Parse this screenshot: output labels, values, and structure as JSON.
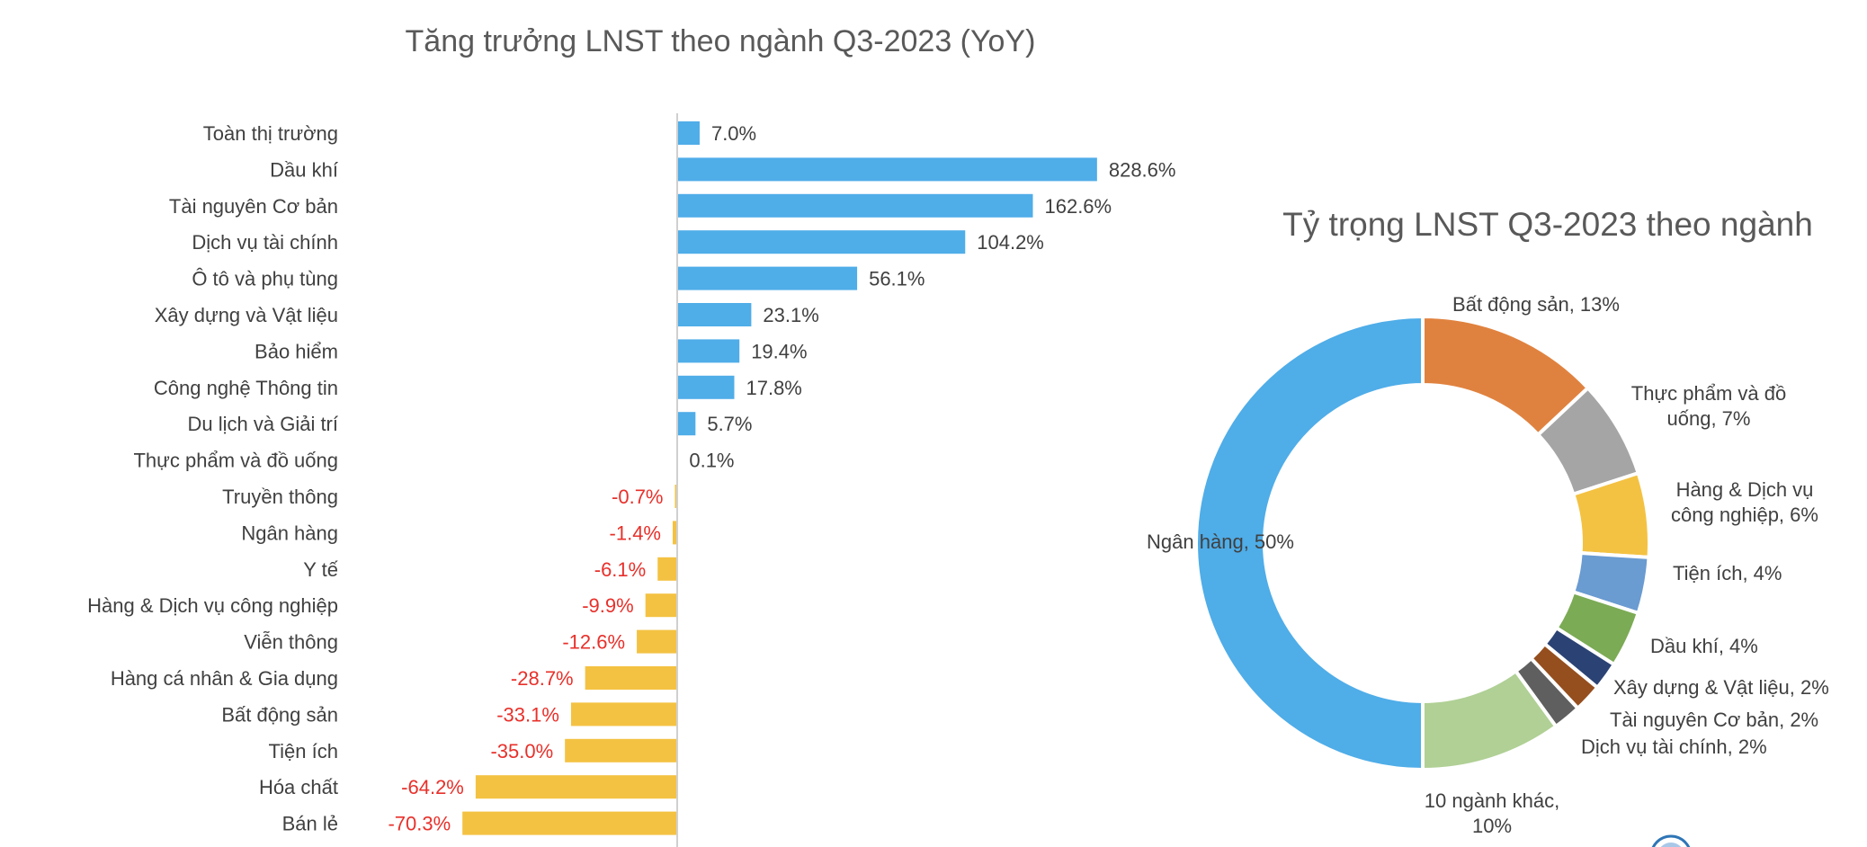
{
  "chart_data": [
    {
      "type": "bar",
      "orientation": "horizontal",
      "title": "Tăng trưởng LNST theo ngành Q3-2023 (YoY)",
      "categories": [
        "Toàn thị trường",
        "Dầu khí",
        "Tài nguyên Cơ bản",
        "Dịch vụ tài chính",
        "Ô tô và phụ tùng",
        "Xây dựng và Vật liệu",
        "Bảo hiểm",
        "Công nghệ Thông tin",
        "Du lịch và Giải trí",
        "Thực phẩm và đồ uống",
        "Truyền thông",
        "Ngân hàng",
        "Y tế",
        "Hàng & Dịch vụ công nghiệp",
        "Viễn thông",
        "Hàng cá nhân & Gia dụng",
        "Bất động sản",
        "Tiện ích",
        "Hóa chất",
        "Bán lẻ"
      ],
      "values": [
        7.0,
        828.6,
        162.6,
        104.2,
        56.1,
        23.1,
        19.4,
        17.8,
        5.7,
        0.1,
        -0.7,
        -1.4,
        -6.1,
        -9.9,
        -12.6,
        -28.7,
        -33.1,
        -35.0,
        -64.2,
        -70.3
      ],
      "labels": [
        "7.0%",
        "828.6%",
        "162.6%",
        "104.2%",
        "56.1%",
        "23.1%",
        "19.4%",
        "17.8%",
        "5.7%",
        "0.1%",
        "-0.7%",
        "-1.4%",
        "-6.1%",
        "-9.9%",
        "-12.6%",
        "-28.7%",
        "-33.1%",
        "-35.0%",
        "-64.2%",
        "-70.3%"
      ],
      "unit": "%",
      "axis_scale": "compressed for large values",
      "grid": false,
      "colors": {
        "positive": "#4FADE8",
        "negative": "#F4C242",
        "positive_label": "#404040",
        "negative_label": "#E8302A",
        "axis": "#D0D0D0"
      }
    },
    {
      "type": "pie",
      "donut": true,
      "title": "Tỷ trọng LNST Q3-2023 theo ngành",
      "slices": [
        {
          "name": "Bất động sản",
          "value": 13,
          "label": [
            "Bất động sản, 13%"
          ],
          "color": "#E0823F"
        },
        {
          "name": "Thực phẩm và đồ uống",
          "value": 7,
          "label": [
            "Thực phẩm và đồ",
            "uống, 7%"
          ],
          "color": "#A5A5A5"
        },
        {
          "name": "Hàng & Dịch vụ công nghiệp",
          "value": 6,
          "label": [
            "Hàng & Dịch vụ",
            "công nghiệp, 6%"
          ],
          "color": "#F4C242"
        },
        {
          "name": "Tiện ích",
          "value": 4,
          "label": [
            "Tiện ích, 4%"
          ],
          "color": "#6A9BD1"
        },
        {
          "name": "Dầu khí",
          "value": 4,
          "label": [
            "Dầu khí, 4%"
          ],
          "color": "#7BAB55"
        },
        {
          "name": "Xây dựng & Vật liệu",
          "value": 2,
          "label": [
            "Xây dựng & Vật liệu, 2%"
          ],
          "color": "#2B4374"
        },
        {
          "name": "Tài nguyên Cơ bản",
          "value": 2,
          "label": [
            "Tài nguyên Cơ bản, 2%"
          ],
          "color": "#954E1E"
        },
        {
          "name": "Dịch vụ tài chính",
          "value": 2,
          "label": [
            "Dịch vụ tài chính, 2%"
          ],
          "color": "#5F5F5F"
        },
        {
          "name": "10 ngành khác",
          "value": 10,
          "label": [
            "10 ngành khác,",
            "10%"
          ],
          "color": "#B0D095"
        },
        {
          "name": "Ngân hàng",
          "value": 50,
          "label": [
            "Ngân hàng, 50%"
          ],
          "color": "#4FADE8"
        }
      ],
      "start": "top",
      "direction": "clockwise"
    }
  ]
}
